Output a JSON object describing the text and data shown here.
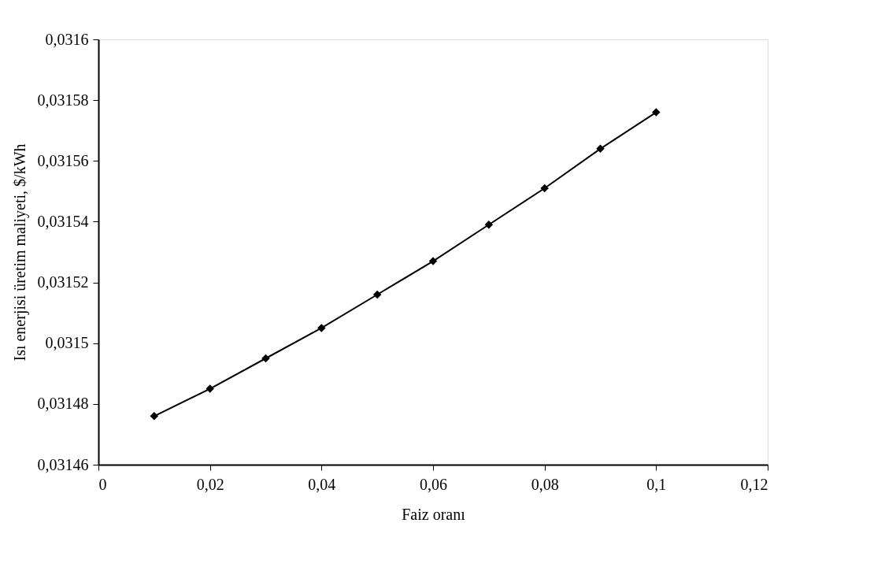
{
  "chart_data": {
    "type": "line",
    "xlabel": "Faiz oranı",
    "ylabel": "Isı enerjisi üretim maliyeti, $/kWh",
    "x": [
      0.01,
      0.02,
      0.03,
      0.04,
      0.05,
      0.06,
      0.07,
      0.08,
      0.09,
      0.1
    ],
    "series": [
      {
        "color": "#000000",
        "values": [
          0.031476,
          0.031485,
          0.031495,
          0.031505,
          0.031516,
          0.031527,
          0.031539,
          0.031551,
          0.031564,
          0.031576
        ]
      }
    ],
    "xlim": [
      0,
      0.12
    ],
    "xticks": [
      0,
      {
        "value": 0.02,
        "label": "0,02"
      },
      {
        "value": 0.04,
        "label": "0,04"
      },
      {
        "value": 0.06,
        "label": "0,06"
      },
      {
        "value": 0.08,
        "label": "0,08"
      },
      {
        "value": 0.1,
        "label": "0,1"
      },
      {
        "value": 0.12,
        "label": "0,12"
      }
    ],
    "ylim": [
      0.03146,
      0.0316
    ],
    "yticks": [
      {
        "value": 0.03146,
        "label": "0,03146"
      },
      {
        "value": 0.03148,
        "label": "0,03148"
      },
      {
        "value": 0.0315,
        "label": "0,0315"
      },
      {
        "value": 0.03152,
        "label": "0,03152"
      },
      {
        "value": 0.03154,
        "label": "0,03154"
      },
      {
        "value": 0.03156,
        "label": "0,03156"
      },
      {
        "value": 0.03158,
        "label": "0,03158"
      },
      {
        "value": 0.0316,
        "label": "0,0316"
      }
    ],
    "grid": false,
    "marker": "diamond",
    "line_style": "solid"
  }
}
